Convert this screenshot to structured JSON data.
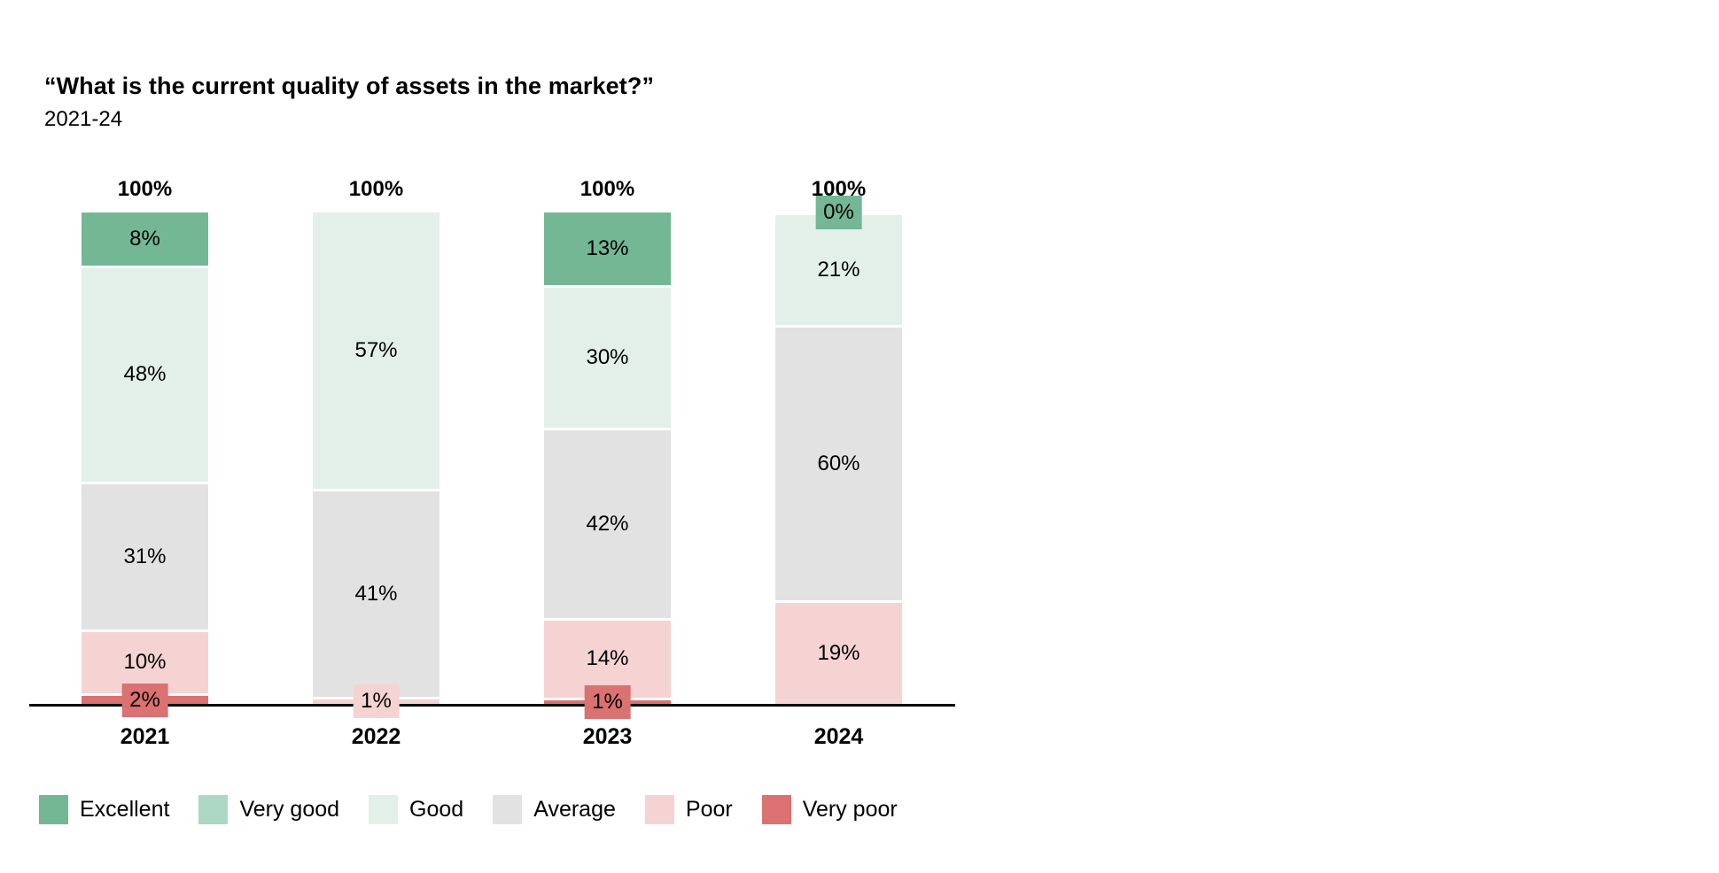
{
  "header": {
    "title": "“What is the current quality of assets in the market?”",
    "subtitle": "2021-24"
  },
  "chart_data": {
    "type": "bar",
    "stacked": true,
    "orientation": "vertical",
    "title": "“What is the current quality of assets in the market?”",
    "subtitle": "2021-24",
    "categories": [
      "2021",
      "2022",
      "2023",
      "2024"
    ],
    "series": [
      {
        "name": "Excellent",
        "color": "#73B795",
        "values": [
          8,
          null,
          13,
          0
        ]
      },
      {
        "name": "Very good",
        "color": "#ACD7C3",
        "values": [
          null,
          null,
          null,
          null
        ]
      },
      {
        "name": "Good",
        "color": "#E2F0E9",
        "values": [
          48,
          57,
          30,
          21
        ]
      },
      {
        "name": "Average",
        "color": "#E2E2E3",
        "values": [
          31,
          41,
          42,
          60
        ]
      },
      {
        "name": "Poor",
        "color": "#F5D3D3",
        "values": [
          10,
          1,
          14,
          19
        ]
      },
      {
        "name": "Very poor",
        "color": "#DB7170",
        "values": [
          2,
          null,
          1,
          null
        ]
      }
    ],
    "bar_total_label": "100%",
    "value_suffix": "%",
    "ylim": [
      0,
      100
    ],
    "gridlines": false,
    "legend_position": "bottom",
    "axis_color": "#000000",
    "small_segment_label_threshold": 4
  }
}
